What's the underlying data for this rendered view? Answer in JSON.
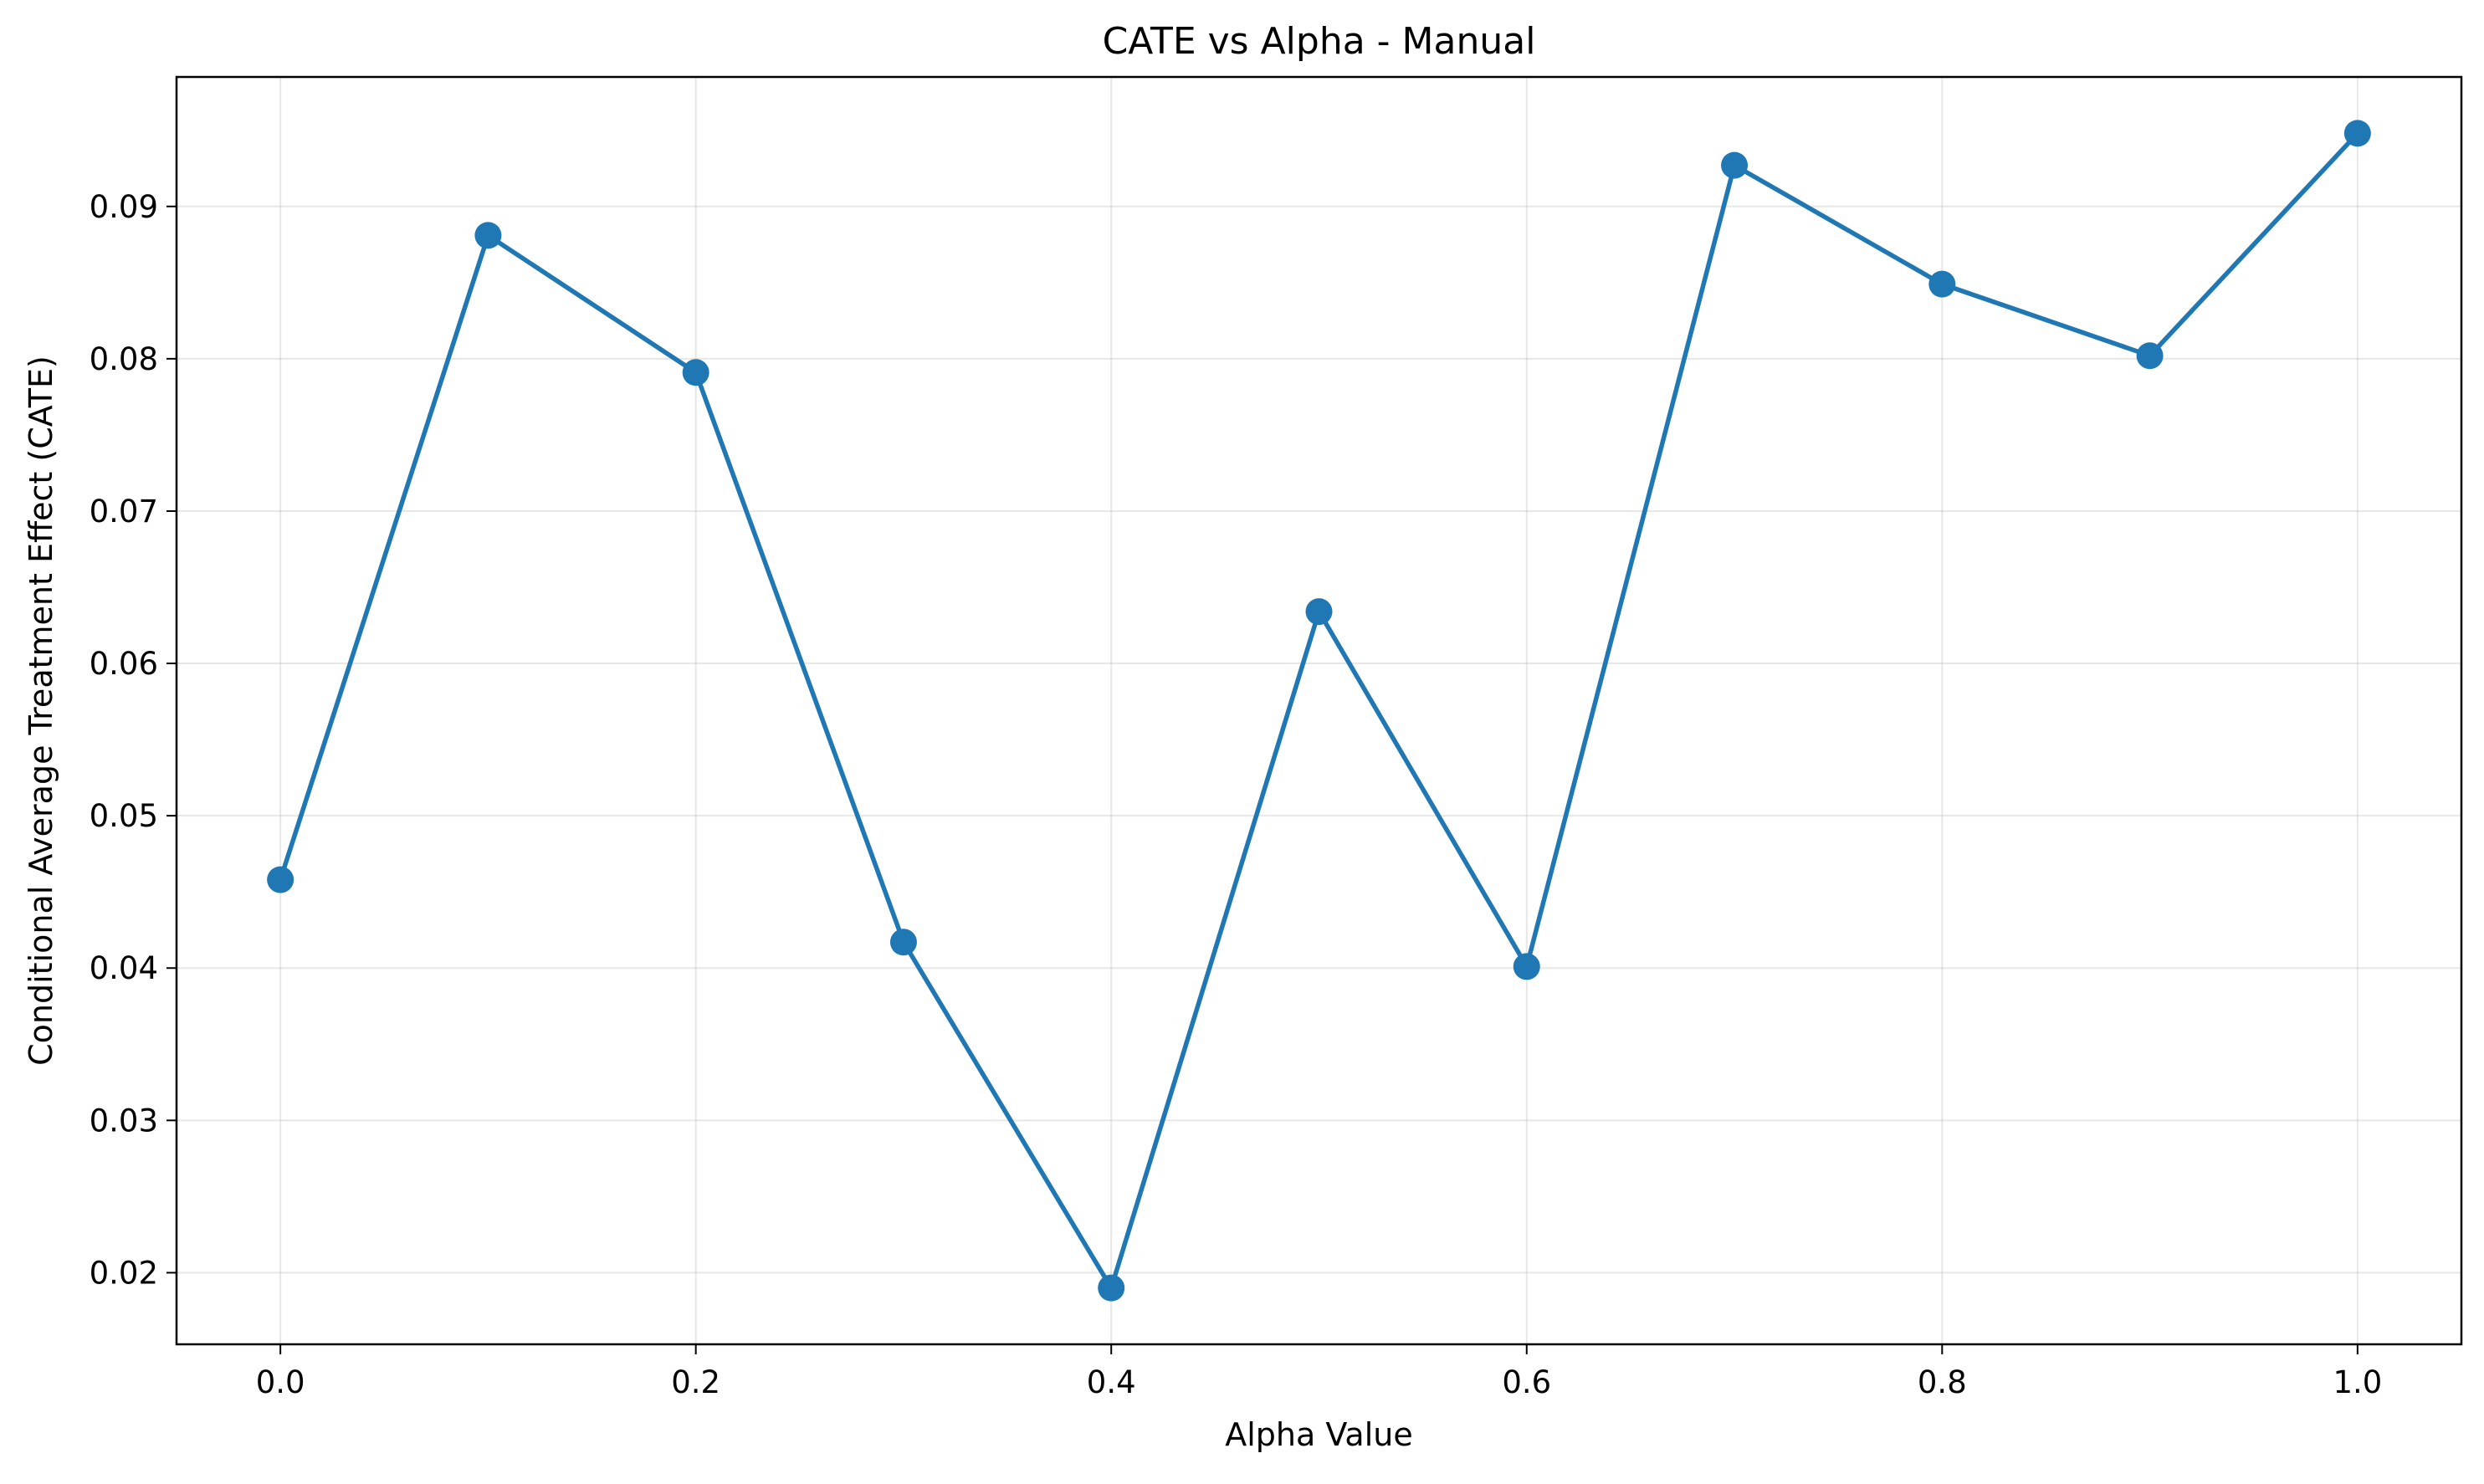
{
  "chart_data": {
    "type": "line",
    "title": "CATE vs Alpha - Manual",
    "xlabel": "Alpha Value",
    "ylabel": "Conditional Average Treatment Effect (CATE)",
    "x_ticks": [
      "0.0",
      "0.2",
      "0.4",
      "0.6",
      "0.8",
      "1.0"
    ],
    "y_ticks": [
      "0.02",
      "0.03",
      "0.04",
      "0.05",
      "0.06",
      "0.07",
      "0.08",
      "0.09"
    ],
    "xlim": [
      -0.05,
      1.05
    ],
    "ylim": [
      0.0153,
      0.0985
    ],
    "grid": true,
    "series": [
      {
        "color": "#1f77b4",
        "marker": "circle",
        "x": [
          0.0,
          0.1,
          0.2,
          0.3,
          0.4,
          0.5,
          0.6,
          0.7,
          0.8,
          0.9,
          1.0
        ],
        "values": [
          0.0458,
          0.0881,
          0.0791,
          0.0417,
          0.019,
          0.0634,
          0.0401,
          0.0927,
          0.0849,
          0.0802,
          0.0948
        ]
      }
    ]
  }
}
